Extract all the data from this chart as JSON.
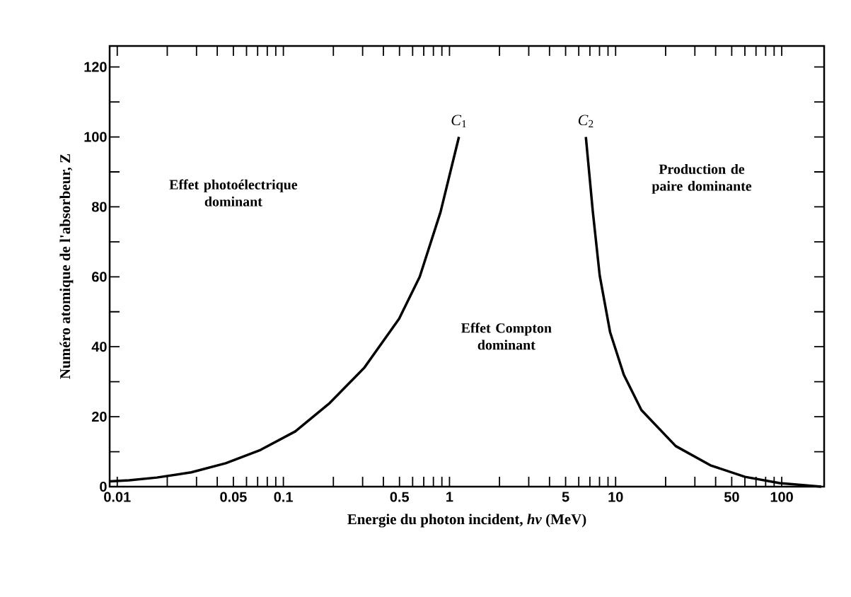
{
  "chart_data": {
    "type": "line",
    "xlabel": "Energie du photon incident, *hν* (MeV)",
    "ylabel": "Numéro atomique de l'absorbeur, Z",
    "log": "x",
    "grid": false,
    "marker": "none",
    "line_style": "solid",
    "xlim": [
      0.009,
      180
    ],
    "ylim": [
      0,
      126
    ],
    "xticks": [
      0.01,
      {
        "value": 0.02,
        "label": null
      },
      {
        "value": 0.03,
        "label": null
      },
      {
        "value": 0.04,
        "label": null
      },
      0.05,
      {
        "value": 0.06,
        "label": null
      },
      {
        "value": 0.07,
        "label": null
      },
      {
        "value": 0.08,
        "label": null
      },
      {
        "value": 0.09,
        "label": null
      },
      0.1,
      {
        "value": 0.2,
        "label": null
      },
      {
        "value": 0.3,
        "label": null
      },
      {
        "value": 0.4,
        "label": null
      },
      0.5,
      {
        "value": 0.6,
        "label": null
      },
      {
        "value": 0.7,
        "label": null
      },
      {
        "value": 0.8,
        "label": null
      },
      {
        "value": 0.9,
        "label": null
      },
      1,
      {
        "value": 2,
        "label": null
      },
      {
        "value": 3,
        "label": null
      },
      {
        "value": 4,
        "label": null
      },
      5,
      {
        "value": 6,
        "label": null
      },
      {
        "value": 7,
        "label": null
      },
      {
        "value": 8,
        "label": null
      },
      {
        "value": 9,
        "label": null
      },
      10,
      {
        "value": 20,
        "label": null
      },
      {
        "value": 30,
        "label": null
      },
      {
        "value": 40,
        "label": null
      },
      50,
      {
        "value": 60,
        "label": null
      },
      {
        "value": 70,
        "label": null
      },
      {
        "value": 80,
        "label": null
      },
      {
        "value": 90,
        "label": null
      },
      100
    ],
    "yticks": [
      0,
      {
        "value": 10,
        "label": null
      },
      20,
      {
        "value": 30,
        "label": null
      },
      40,
      {
        "value": 50,
        "label": null
      },
      60,
      {
        "value": 70,
        "label": null
      },
      80,
      {
        "value": 90,
        "label": null
      },
      100,
      {
        "value": 110,
        "label": null
      },
      120
    ],
    "series": [
      {
        "name": "*C*$_{1}$",
        "color": "#000000",
        "x": [
          0.009,
          0.0118,
          0.0173,
          0.0279,
          0.045,
          0.0729,
          0.118,
          0.19,
          0.307,
          0.497,
          0.662,
          0.883,
          1.14
        ],
        "values": [
          1.5,
          1.8,
          2.6,
          4.1,
          6.7,
          10.5,
          15.8,
          23.9,
          34,
          48,
          60,
          78.5,
          100
        ]
      },
      {
        "name": "*C*$_{2}$",
        "color": "#000000",
        "x": [
          6.62,
          7.29,
          8.02,
          9.26,
          11.2,
          14.3,
          23,
          37.2,
          60.1,
          97.2,
          173
        ],
        "values": [
          100,
          78.7,
          60.4,
          44.2,
          32,
          21.9,
          11.6,
          6.1,
          2.8,
          1,
          0
        ]
      }
    ],
    "annotations": [
      "Effet photoélectrique dominant",
      "Effet Compton dominant",
      "Production de paire dominante"
    ]
  }
}
